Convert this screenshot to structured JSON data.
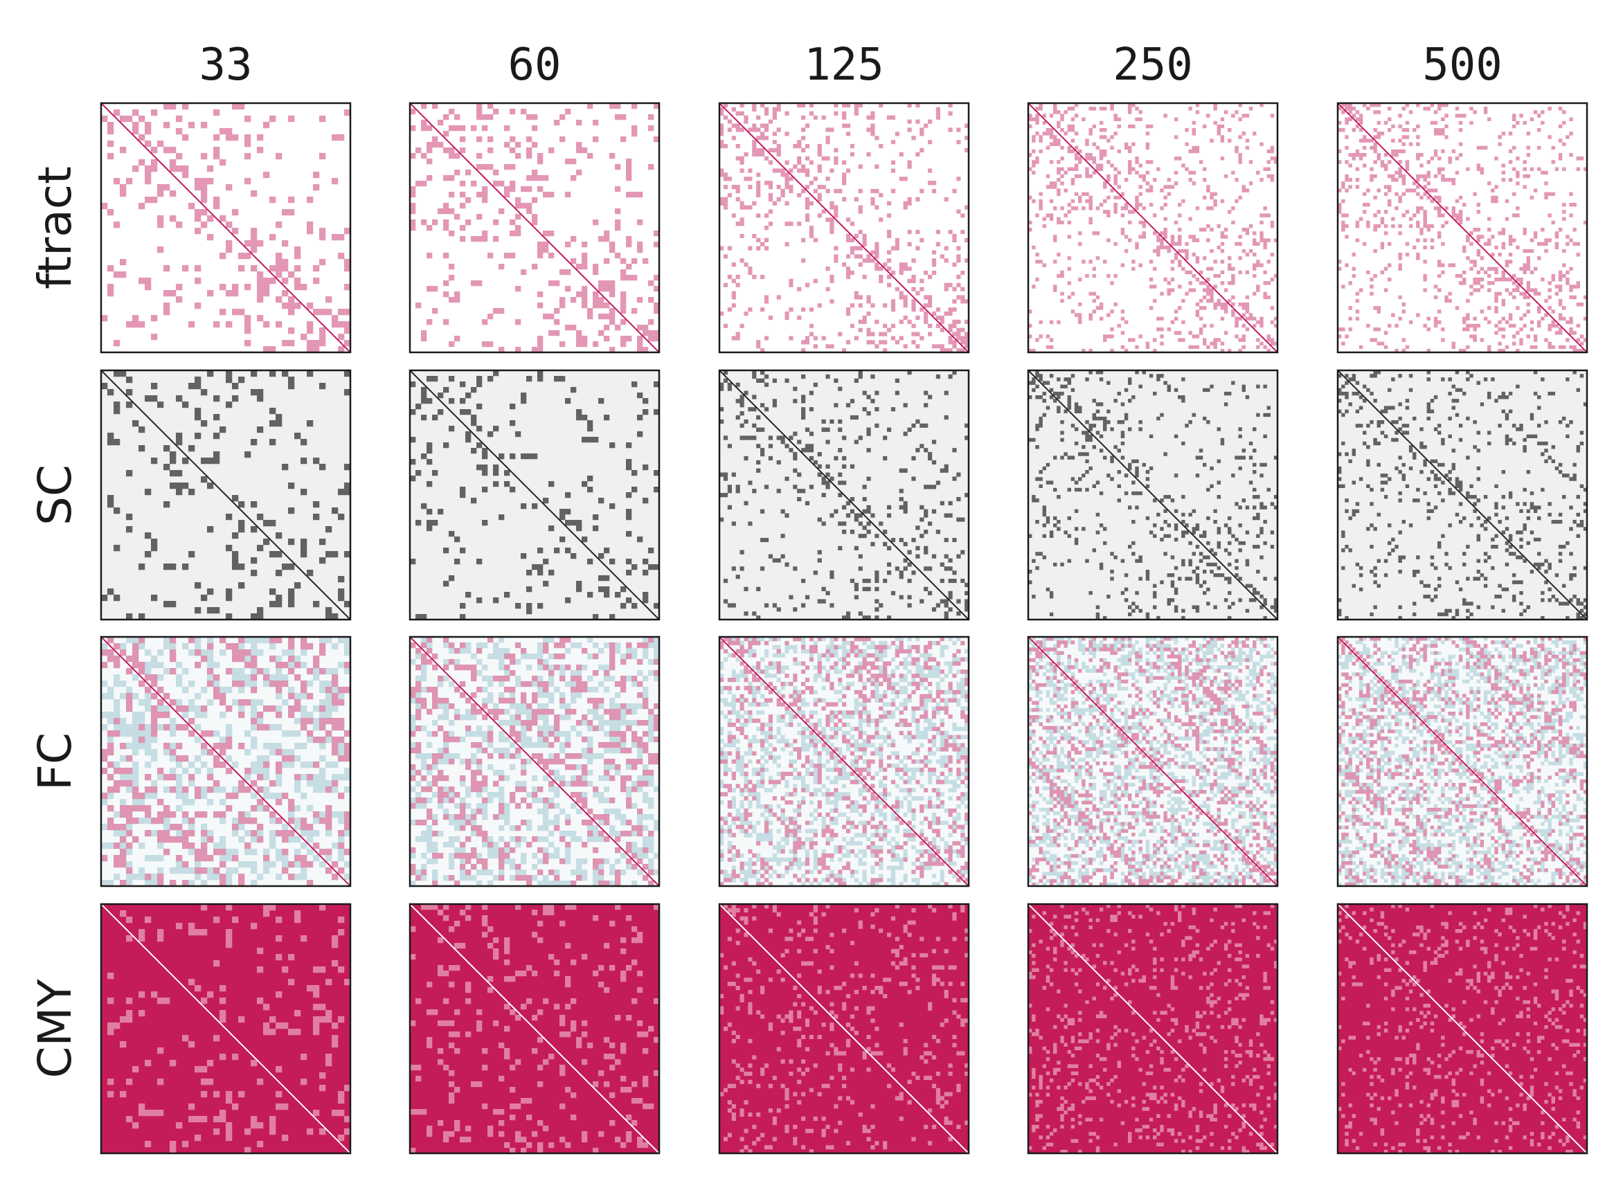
{
  "chart_data": {
    "type": "heatmap",
    "columns": [
      "33",
      "60",
      "125",
      "250",
      "500"
    ],
    "rows": [
      {
        "label": "ftract",
        "colormap": "white-to-crimson",
        "background": "#ffffff",
        "mark_color": "#c2185b",
        "density": 0.55
      },
      {
        "label": "SC",
        "colormap": "lightgray-to-black",
        "background": "#f0f0f0",
        "mark_color": "#333333",
        "density": 0.35
      },
      {
        "label": "FC",
        "colormap": "blue-white-crimson diverging",
        "background": "#f6f9fa",
        "mark_color": "#c2185b",
        "neg_color": "#7fb3c4",
        "density": 0.6
      },
      {
        "label": "CMY",
        "colormap": "white-to-crimson",
        "background": "#c41c58",
        "mark_color": "#c2185b",
        "density": 0.95
      }
    ],
    "grid": false,
    "axis_ticks": false
  }
}
